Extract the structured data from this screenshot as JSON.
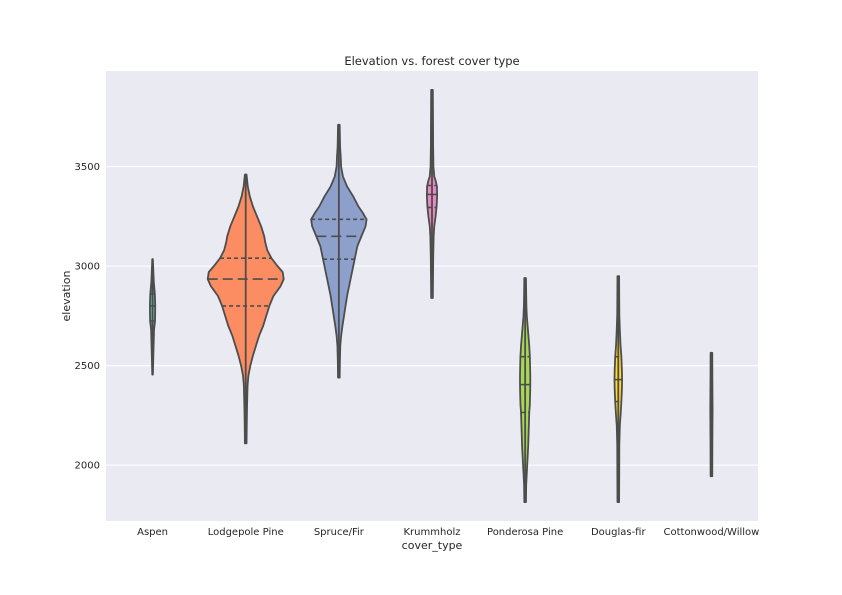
{
  "chart_data": {
    "type": "violin",
    "title": "Elevation vs. forest cover type",
    "xlabel": "cover_type",
    "ylabel": "elevation",
    "ylim": [
      1720,
      3980
    ],
    "yticks": [
      2000,
      2500,
      3000,
      3500
    ],
    "inner": "quartile",
    "grid": true,
    "categories": [
      "Aspen",
      "Lodgepole Pine",
      "Spruce/Fir",
      "Krummholz",
      "Ponderosa Pine",
      "Douglas-fir",
      "Cottonwood/Willow"
    ],
    "series": [
      {
        "name": "Aspen",
        "color": "#66c2a5",
        "min": 2455,
        "max": 3035,
        "quartiles": [
          2725,
          2800,
          2860
        ],
        "density": [
          [
            2455,
            0.3
          ],
          [
            2520,
            0.6
          ],
          [
            2600,
            1.0
          ],
          [
            2680,
            1.4
          ],
          [
            2725,
            2.4
          ],
          [
            2800,
            2.6
          ],
          [
            2860,
            2.2
          ],
          [
            2920,
            1.2
          ],
          [
            2980,
            0.7
          ],
          [
            3035,
            0.3
          ]
        ]
      },
      {
        "name": "Lodgepole Pine",
        "color": "#fc8d62",
        "min": 2110,
        "max": 3460,
        "quartiles": [
          2800,
          2935,
          3040
        ],
        "density": [
          [
            2110,
            0.8
          ],
          [
            2200,
            1.0
          ],
          [
            2300,
            1.3
          ],
          [
            2400,
            1.8
          ],
          [
            2450,
            2.6
          ],
          [
            2500,
            4.5
          ],
          [
            2550,
            7
          ],
          [
            2600,
            10
          ],
          [
            2650,
            13
          ],
          [
            2700,
            17
          ],
          [
            2750,
            20
          ],
          [
            2800,
            23
          ],
          [
            2850,
            27
          ],
          [
            2900,
            34
          ],
          [
            2935,
            37
          ],
          [
            2970,
            36
          ],
          [
            3000,
            31
          ],
          [
            3040,
            25
          ],
          [
            3080,
            21
          ],
          [
            3120,
            19
          ],
          [
            3150,
            18
          ],
          [
            3200,
            15
          ],
          [
            3250,
            11
          ],
          [
            3300,
            7
          ],
          [
            3350,
            4
          ],
          [
            3400,
            2
          ],
          [
            3460,
            0.8
          ]
        ]
      },
      {
        "name": "Spruce/Fir",
        "color": "#8da0cb",
        "min": 2440,
        "max": 3710,
        "quartiles": [
          3035,
          3150,
          3235
        ],
        "density": [
          [
            2440,
            0.8
          ],
          [
            2520,
            1.0
          ],
          [
            2600,
            1.4
          ],
          [
            2650,
            2.2
          ],
          [
            2700,
            3.5
          ],
          [
            2750,
            5
          ],
          [
            2800,
            6.5
          ],
          [
            2850,
            8
          ],
          [
            2900,
            10
          ],
          [
            2950,
            12
          ],
          [
            3000,
            14
          ],
          [
            3050,
            16
          ],
          [
            3100,
            18
          ],
          [
            3150,
            22
          ],
          [
            3200,
            26
          ],
          [
            3235,
            27
          ],
          [
            3270,
            23
          ],
          [
            3300,
            19
          ],
          [
            3350,
            14
          ],
          [
            3400,
            8
          ],
          [
            3450,
            4
          ],
          [
            3500,
            2.2
          ],
          [
            3550,
            1.8
          ],
          [
            3600,
            1.2
          ],
          [
            3650,
            1.0
          ],
          [
            3710,
            0.8
          ]
        ]
      },
      {
        "name": "Krummholz",
        "color": "#e78ac3",
        "min": 2840,
        "max": 3885,
        "quartiles": [
          3295,
          3360,
          3405
        ],
        "density": [
          [
            2840,
            0.8
          ],
          [
            2950,
            1.0
          ],
          [
            3050,
            1.2
          ],
          [
            3150,
            1.6
          ],
          [
            3200,
            2.2
          ],
          [
            3250,
            3.5
          ],
          [
            3300,
            4.5
          ],
          [
            3350,
            5
          ],
          [
            3400,
            4.8
          ],
          [
            3430,
            3.5
          ],
          [
            3450,
            2.2
          ],
          [
            3500,
            1.4
          ],
          [
            3600,
            1.1
          ],
          [
            3700,
            1.0
          ],
          [
            3800,
            0.9
          ],
          [
            3885,
            0.8
          ]
        ]
      },
      {
        "name": "Ponderosa Pine",
        "color": "#a6d854",
        "min": 1815,
        "max": 2940,
        "quartiles": [
          2265,
          2405,
          2545
        ],
        "density": [
          [
            1815,
            0.8
          ],
          [
            1900,
            1.0
          ],
          [
            2000,
            2.0
          ],
          [
            2100,
            3.0
          ],
          [
            2200,
            3.6
          ],
          [
            2265,
            4.0
          ],
          [
            2300,
            4.5
          ],
          [
            2350,
            4.8
          ],
          [
            2405,
            5.0
          ],
          [
            2450,
            5.0
          ],
          [
            2500,
            4.8
          ],
          [
            2545,
            4.6
          ],
          [
            2600,
            4.0
          ],
          [
            2650,
            3.2
          ],
          [
            2700,
            2.4
          ],
          [
            2750,
            1.6
          ],
          [
            2800,
            1.2
          ],
          [
            2860,
            1.0
          ],
          [
            2940,
            0.8
          ]
        ]
      },
      {
        "name": "Douglas-fir",
        "color": "#ffd92f",
        "min": 1815,
        "max": 2950,
        "quartiles": [
          2320,
          2430,
          2545
        ],
        "density": [
          [
            1815,
            0.8
          ],
          [
            1950,
            0.9
          ],
          [
            2100,
            1.0
          ],
          [
            2200,
            1.5
          ],
          [
            2250,
            2.2
          ],
          [
            2320,
            3.0
          ],
          [
            2380,
            3.5
          ],
          [
            2430,
            3.7
          ],
          [
            2480,
            3.5
          ],
          [
            2545,
            3.0
          ],
          [
            2600,
            2.2
          ],
          [
            2680,
            1.5
          ],
          [
            2760,
            1.0
          ],
          [
            2850,
            0.9
          ],
          [
            2950,
            0.8
          ]
        ]
      },
      {
        "name": "Cottonwood/Willow",
        "color": "#e5c494",
        "min": 1945,
        "max": 2565,
        "quartiles": [
          2200,
          2280,
          2360
        ],
        "density": [
          [
            1945,
            0.8
          ],
          [
            2100,
            0.9
          ],
          [
            2200,
            1.0
          ],
          [
            2280,
            1.1
          ],
          [
            2360,
            1.0
          ],
          [
            2450,
            0.9
          ],
          [
            2565,
            0.8
          ]
        ]
      }
    ]
  }
}
